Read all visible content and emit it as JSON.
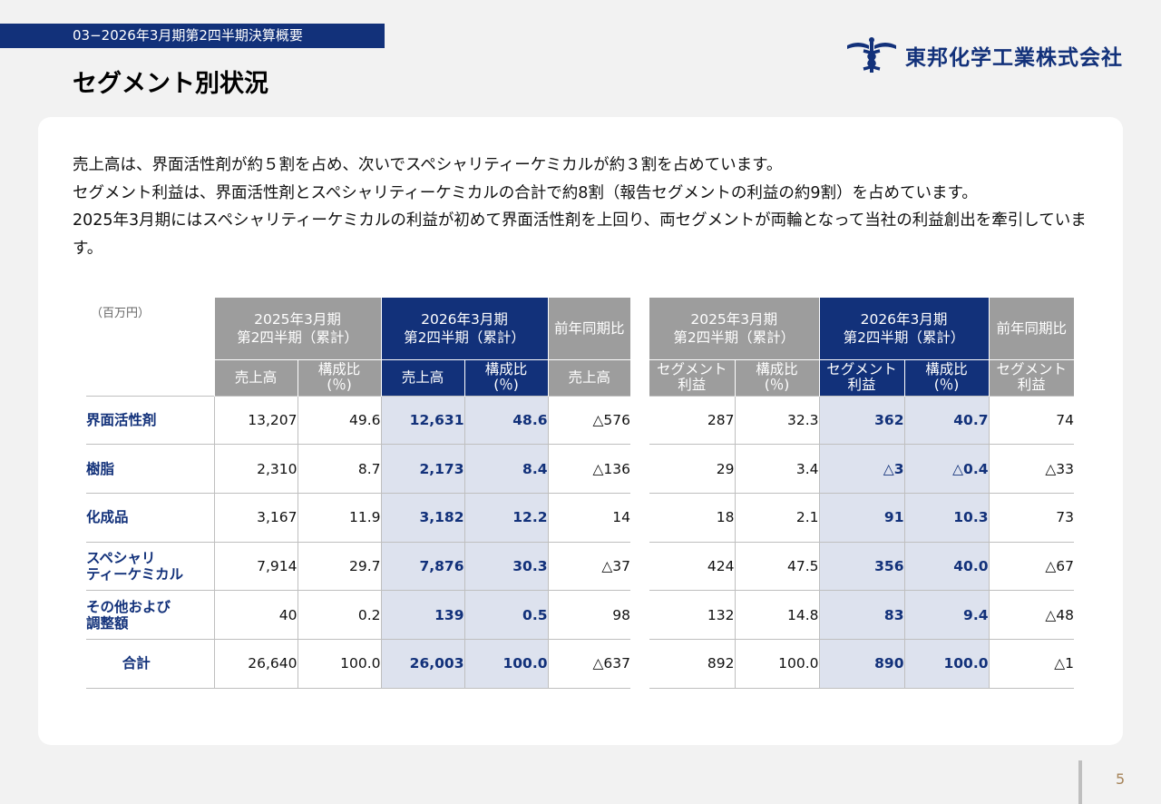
{
  "header": {
    "section_tag": "03−2026年3月期第2四半期決算概要",
    "title": "セグメント別状況",
    "company": "東邦化学工業株式会社"
  },
  "description": [
    "売上高は、界面活性剤が約５割を占め、次いでスペシャリティーケミカルが約３割を占めています。",
    "セグメント利益は、界面活性剤とスペシャリティーケミカルの合計で約8割（報告セグメントの利益の約9割）を占めています。",
    "2025年3月期にはスペシャリティーケミカルの利益が初めて界面活性剤を上回り、両セグメントが両輪となって当社の利益創出を牽引しています。"
  ],
  "unit": "（百万円）",
  "colors": {
    "navy": "#12317a",
    "gray": "#9d9d9d",
    "highlight": "#dde2ee"
  },
  "sales_table": {
    "head": {
      "prev": "2025年3月期\n第2四半期（累計）",
      "cur": "2026年3月期\n第2四半期（累計）",
      "yoy": "前年同期比",
      "sub_sales": "売上高",
      "sub_ratio": "構成比\n(％)",
      "sub_yoy": "売上高"
    },
    "rows": [
      {
        "label": "界面活性剤",
        "prev_sales": "13,207",
        "prev_ratio": "49.6",
        "cur_sales": "12,631",
        "cur_ratio": "48.6",
        "yoy": "△576"
      },
      {
        "label": "樹脂",
        "prev_sales": "2,310",
        "prev_ratio": "8.7",
        "cur_sales": "2,173",
        "cur_ratio": "8.4",
        "yoy": "△136"
      },
      {
        "label": "化成品",
        "prev_sales": "3,167",
        "prev_ratio": "11.9",
        "cur_sales": "3,182",
        "cur_ratio": "12.2",
        "yoy": "14"
      },
      {
        "label": "スペシャリ\nティーケミカル",
        "prev_sales": "7,914",
        "prev_ratio": "29.7",
        "cur_sales": "7,876",
        "cur_ratio": "30.3",
        "yoy": "△37"
      },
      {
        "label": "その他および\n調整額",
        "prev_sales": "40",
        "prev_ratio": "0.2",
        "cur_sales": "139",
        "cur_ratio": "0.5",
        "yoy": "98"
      },
      {
        "label": "合計",
        "prev_sales": "26,640",
        "prev_ratio": "100.0",
        "cur_sales": "26,003",
        "cur_ratio": "100.0",
        "yoy": "△637"
      }
    ]
  },
  "profit_table": {
    "head": {
      "prev": "2025年3月期\n第2四半期（累計）",
      "cur": "2026年3月期\n第2四半期（累計）",
      "yoy": "前年同期比",
      "sub_profit": "セグメント\n利益",
      "sub_ratio": "構成比\n(％)",
      "sub_yoy": "セグメント\n利益"
    },
    "rows": [
      {
        "prev_profit": "287",
        "prev_ratio": "32.3",
        "cur_profit": "362",
        "cur_ratio": "40.7",
        "yoy": "74"
      },
      {
        "prev_profit": "29",
        "prev_ratio": "3.4",
        "cur_profit": "△3",
        "cur_ratio": "△0.4",
        "yoy": "△33"
      },
      {
        "prev_profit": "18",
        "prev_ratio": "2.1",
        "cur_profit": "91",
        "cur_ratio": "10.3",
        "yoy": "73"
      },
      {
        "prev_profit": "424",
        "prev_ratio": "47.5",
        "cur_profit": "356",
        "cur_ratio": "40.0",
        "yoy": "△67"
      },
      {
        "prev_profit": "132",
        "prev_ratio": "14.8",
        "cur_profit": "83",
        "cur_ratio": "9.4",
        "yoy": "△48"
      },
      {
        "prev_profit": "892",
        "prev_ratio": "100.0",
        "cur_profit": "890",
        "cur_ratio": "100.0",
        "yoy": "△1"
      }
    ]
  },
  "page_number": "5"
}
